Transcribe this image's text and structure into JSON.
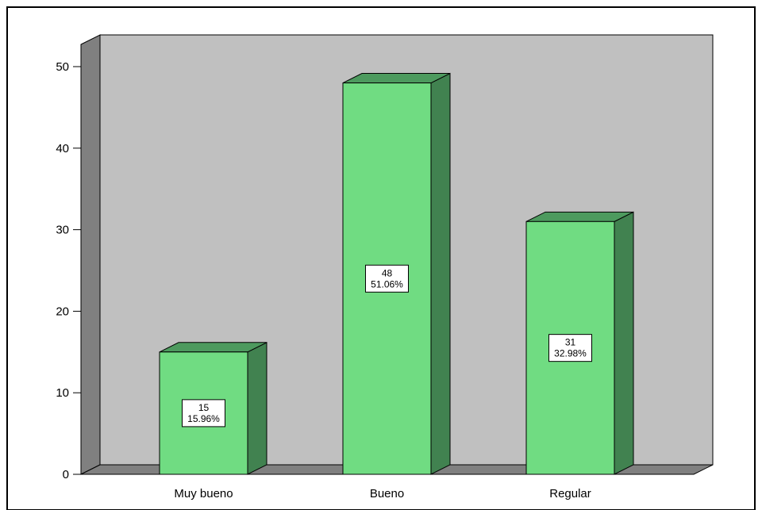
{
  "chart_data": {
    "type": "bar",
    "style": "3d",
    "categories": [
      "Muy bueno",
      "Bueno",
      "Regular"
    ],
    "values": [
      15,
      48,
      31
    ],
    "percent_labels": [
      "15.96%",
      "51.06%",
      "32.98%"
    ],
    "value_labels": [
      "15",
      "48",
      "31"
    ],
    "y_ticks": [
      "0",
      "10",
      "20",
      "30",
      "40",
      "50"
    ],
    "ylim": [
      0,
      50
    ],
    "grid": false,
    "legend": "none",
    "title": "",
    "xlabel": "",
    "ylabel": ""
  },
  "colors": {
    "bar_front": "#70dc82",
    "bar_side": "#418250",
    "bar_top": "#4d9a5e",
    "back_wall": "#c0c0c0",
    "side_wall": "#808080",
    "floor": "#808080",
    "frame": "#000000"
  }
}
